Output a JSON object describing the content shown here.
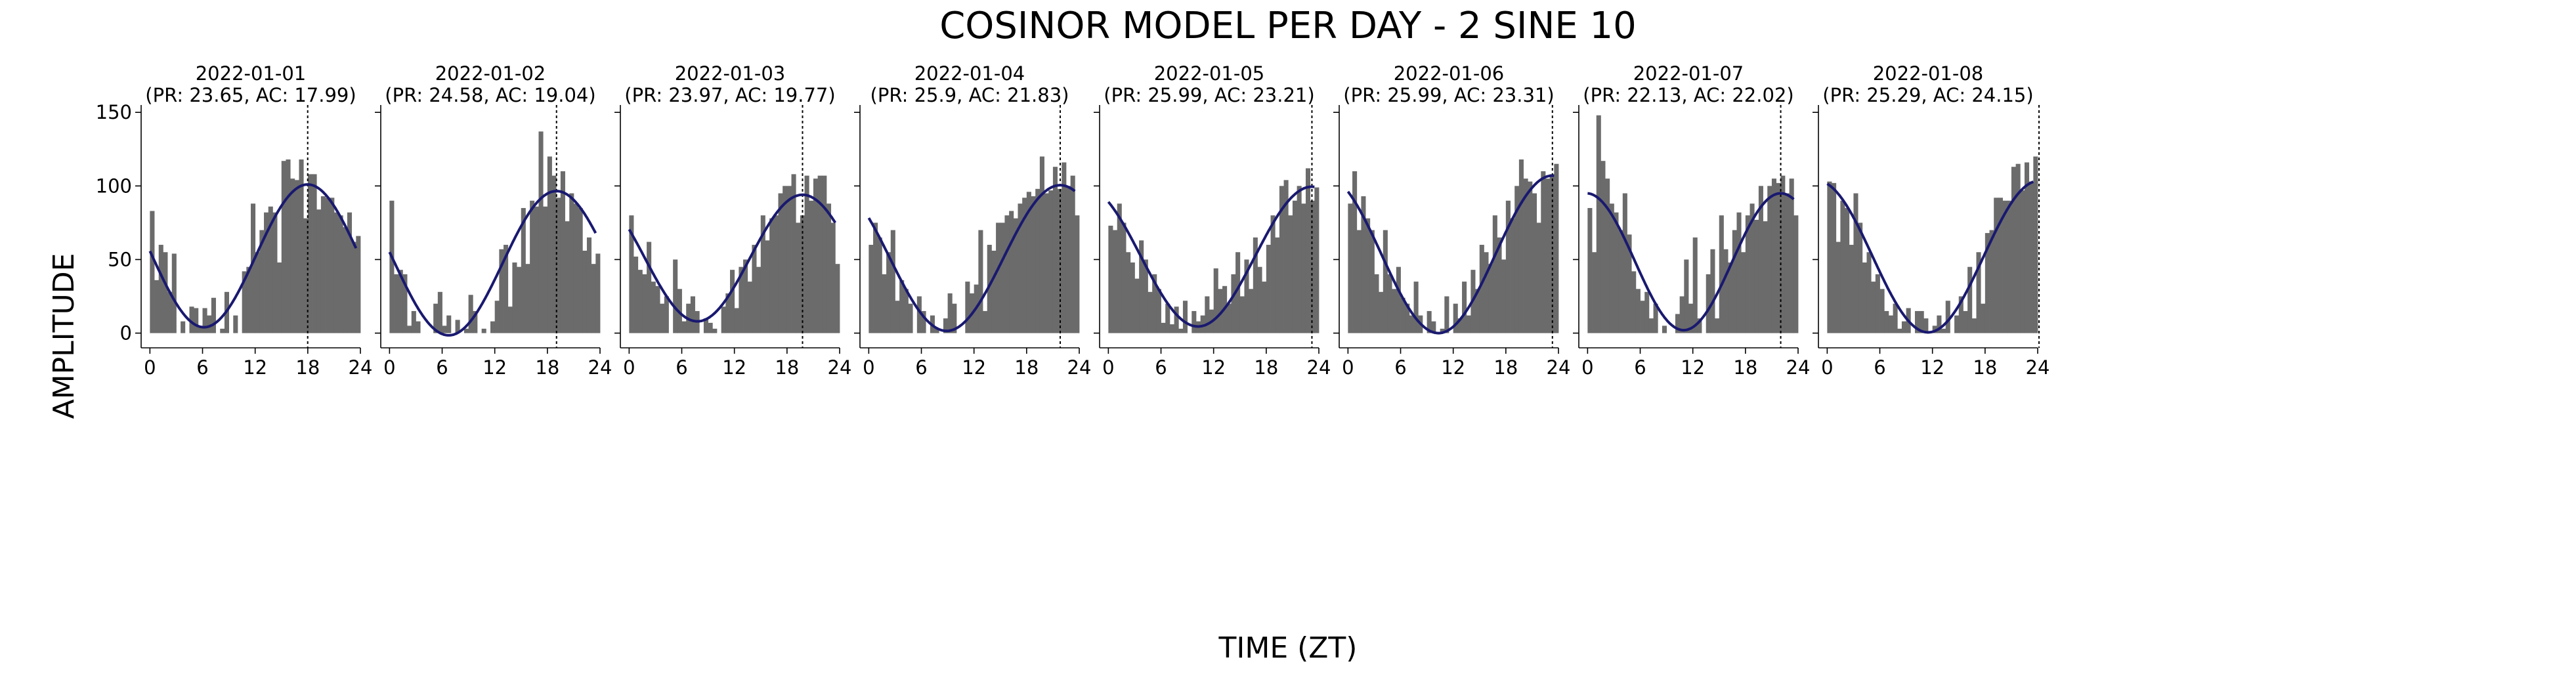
{
  "figure": {
    "title": "COSINOR MODEL PER DAY - 2 SINE 10",
    "xlabel": "TIME (ZT)",
    "ylabel": "AMPLITUDE"
  },
  "colors": {
    "bars": "#6b6b6b",
    "fit_line": "#191970",
    "marker_line": "#000000",
    "axes": "#000000"
  },
  "chart_data": [
    {
      "type": "bar",
      "title": "2022-01-01\n(PR: 23.65, AC: 17.99)",
      "xlim": [
        -1,
        24
      ],
      "ylim": [
        -10,
        155
      ],
      "xticks": [
        0,
        6,
        12,
        18,
        24
      ],
      "yticks": [
        0,
        50,
        100,
        150
      ],
      "x": [
        0,
        0.5,
        1,
        1.5,
        2,
        2.5,
        3,
        3.5,
        4,
        4.5,
        5,
        5.5,
        6,
        6.5,
        7,
        7.5,
        8,
        8.5,
        9,
        9.5,
        10,
        10.5,
        11,
        11.5,
        12,
        12.5,
        13,
        13.5,
        14,
        14.5,
        15,
        15.5,
        16,
        16.5,
        17,
        17.5,
        18,
        18.5,
        19,
        19.5,
        20,
        20.5,
        21,
        21.5,
        22,
        22.5,
        23,
        23.5
      ],
      "values": [
        83,
        36,
        60,
        55,
        28,
        54,
        0,
        8,
        0,
        18,
        17,
        5,
        17,
        12,
        24,
        0,
        3,
        28,
        0,
        12,
        0,
        42,
        45,
        88,
        55,
        70,
        82,
        86,
        82,
        48,
        117,
        118,
        105,
        104,
        118,
        78,
        108,
        108,
        84,
        93,
        92,
        92,
        82,
        80,
        72,
        82,
        62,
        66
      ],
      "fit": {
        "mesor": 52.5,
        "amplitude": 48.5,
        "acrophase": 17.99,
        "period": 23.65
      },
      "marker_x": 17.99,
      "grid": false
    },
    {
      "type": "bar",
      "title": "2022-01-02\n(PR: 24.58, AC: 19.04)",
      "xlim": [
        -1,
        24
      ],
      "ylim": [
        -10,
        155
      ],
      "xticks": [
        0,
        6,
        12,
        18,
        24
      ],
      "yticks": [],
      "x": [
        0,
        0.5,
        1,
        1.5,
        2,
        2.5,
        3,
        3.5,
        4,
        4.5,
        5,
        5.5,
        6,
        6.5,
        7,
        7.5,
        8,
        8.5,
        9,
        9.5,
        10,
        10.5,
        11,
        11.5,
        12,
        12.5,
        13,
        13.5,
        14,
        14.5,
        15,
        15.5,
        16,
        16.5,
        17,
        17.5,
        18,
        18.5,
        19,
        19.5,
        20,
        20.5,
        21,
        21.5,
        22,
        22.5,
        23,
        23.5
      ],
      "values": [
        90,
        40,
        43,
        40,
        5,
        15,
        8,
        0,
        0,
        0,
        20,
        28,
        5,
        12,
        0,
        9,
        0,
        3,
        26,
        15,
        0,
        3,
        0,
        8,
        22,
        57,
        60,
        18,
        48,
        45,
        85,
        47,
        90,
        86,
        137,
        86,
        120,
        107,
        92,
        110,
        76,
        95,
        88,
        85,
        56,
        65,
        47,
        54
      ],
      "fit": {
        "mesor": 47.5,
        "amplitude": 49.0,
        "acrophase": 19.04,
        "period": 24.58
      },
      "marker_x": 19.04,
      "grid": false
    },
    {
      "type": "bar",
      "title": "2022-01-03\n(PR: 23.97, AC: 19.77)",
      "xlim": [
        -1,
        24
      ],
      "ylim": [
        -10,
        155
      ],
      "xticks": [
        0,
        6,
        12,
        18,
        24
      ],
      "yticks": [],
      "x": [
        0,
        0.5,
        1,
        1.5,
        2,
        2.5,
        3,
        3.5,
        4,
        4.5,
        5,
        5.5,
        6,
        6.5,
        7,
        7.5,
        8,
        8.5,
        9,
        9.5,
        10,
        10.5,
        11,
        11.5,
        12,
        12.5,
        13,
        13.5,
        14,
        14.5,
        15,
        15.5,
        16,
        16.5,
        17,
        17.5,
        18,
        18.5,
        19,
        19.5,
        20,
        20.5,
        21,
        21.5,
        22,
        22.5,
        23,
        23.5
      ],
      "values": [
        80,
        52,
        43,
        40,
        62,
        35,
        32,
        20,
        25,
        0,
        50,
        30,
        8,
        20,
        25,
        15,
        0,
        10,
        7,
        3,
        0,
        18,
        27,
        43,
        17,
        45,
        50,
        35,
        60,
        45,
        80,
        63,
        78,
        80,
        95,
        100,
        100,
        108,
        75,
        80,
        107,
        90,
        105,
        107,
        107,
        88,
        75,
        47
      ],
      "fit": {
        "mesor": 51.0,
        "amplitude": 43.0,
        "acrophase": 19.77,
        "period": 23.97
      },
      "marker_x": 19.77,
      "grid": false
    },
    {
      "type": "bar",
      "title": "2022-01-04\n(PR: 25.9, AC: 21.83)",
      "xlim": [
        -1,
        24
      ],
      "ylim": [
        -10,
        155
      ],
      "xticks": [
        0,
        6,
        12,
        18,
        24
      ],
      "yticks": [],
      "x": [
        0,
        0.5,
        1,
        1.5,
        2,
        2.5,
        3,
        3.5,
        4,
        4.5,
        5,
        5.5,
        6,
        6.5,
        7,
        7.5,
        8,
        8.5,
        9,
        9.5,
        10,
        10.5,
        11,
        11.5,
        12,
        12.5,
        13,
        13.5,
        14,
        14.5,
        15,
        15.5,
        16,
        16.5,
        17,
        17.5,
        18,
        18.5,
        19,
        19.5,
        20,
        20.5,
        21,
        21.5,
        22,
        22.5,
        23,
        23.5
      ],
      "values": [
        60,
        75,
        65,
        40,
        55,
        70,
        22,
        36,
        30,
        20,
        0,
        25,
        15,
        0,
        12,
        3,
        0,
        10,
        27,
        20,
        0,
        0,
        35,
        27,
        33,
        70,
        15,
        60,
        56,
        75,
        75,
        80,
        83,
        78,
        88,
        92,
        96,
        93,
        98,
        120,
        95,
        97,
        113,
        98,
        116,
        100,
        107,
        80
      ],
      "fit": {
        "mesor": 51.0,
        "amplitude": 49.5,
        "acrophase": 21.83,
        "period": 25.9
      },
      "marker_x": 21.83,
      "grid": false
    },
    {
      "type": "bar",
      "title": "2022-01-05\n(PR: 25.99, AC: 23.21)",
      "xlim": [
        -1,
        24
      ],
      "ylim": [
        -10,
        155
      ],
      "xticks": [
        0,
        6,
        12,
        18,
        24
      ],
      "yticks": [],
      "x": [
        0,
        0.5,
        1,
        1.5,
        2,
        2.5,
        3,
        3.5,
        4,
        4.5,
        5,
        5.5,
        6,
        6.5,
        7,
        7.5,
        8,
        8.5,
        9,
        9.5,
        10,
        10.5,
        11,
        11.5,
        12,
        12.5,
        13,
        13.5,
        14,
        14.5,
        15,
        15.5,
        16,
        16.5,
        17,
        17.5,
        18,
        18.5,
        19,
        19.5,
        20,
        20.5,
        21,
        21.5,
        22,
        22.5,
        23,
        23.5
      ],
      "values": [
        73,
        70,
        88,
        75,
        55,
        48,
        37,
        63,
        50,
        28,
        40,
        30,
        7,
        20,
        6,
        18,
        3,
        22,
        0,
        15,
        8,
        12,
        25,
        16,
        44,
        30,
        32,
        20,
        40,
        55,
        25,
        50,
        30,
        65,
        45,
        35,
        60,
        80,
        65,
        100,
        104,
        80,
        90,
        100,
        88,
        112,
        90,
        99
      ],
      "fit": {
        "mesor": 52.0,
        "amplitude": 47.5,
        "acrophase": 23.21,
        "period": 25.99
      },
      "marker_x": 23.21,
      "grid": false
    },
    {
      "type": "bar",
      "title": "2022-01-06\n(PR: 25.99, AC: 23.31)",
      "xlim": [
        -1,
        24
      ],
      "ylim": [
        -10,
        155
      ],
      "xticks": [
        0,
        6,
        12,
        18,
        24
      ],
      "yticks": [],
      "x": [
        0,
        0.5,
        1,
        1.5,
        2,
        2.5,
        3,
        3.5,
        4,
        4.5,
        5,
        5.5,
        6,
        6.5,
        7,
        7.5,
        8,
        8.5,
        9,
        9.5,
        10,
        10.5,
        11,
        11.5,
        12,
        12.5,
        13,
        13.5,
        14,
        14.5,
        15,
        15.5,
        16,
        16.5,
        17,
        17.5,
        18,
        18.5,
        19,
        19.5,
        20,
        20.5,
        21,
        21.5,
        22,
        22.5,
        23,
        23.5
      ],
      "values": [
        88,
        110,
        70,
        93,
        78,
        70,
        40,
        28,
        70,
        40,
        30,
        45,
        24,
        20,
        12,
        35,
        12,
        0,
        15,
        8,
        0,
        3,
        25,
        0,
        20,
        10,
        35,
        12,
        43,
        30,
        60,
        55,
        47,
        80,
        65,
        50,
        90,
        78,
        100,
        118,
        105,
        103,
        95,
        75,
        110,
        105,
        108,
        115
      ],
      "fit": {
        "mesor": 53.5,
        "amplitude": 53.5,
        "acrophase": 23.31,
        "period": 25.99
      },
      "marker_x": 23.31,
      "grid": false
    },
    {
      "type": "bar",
      "title": "2022-01-07\n(PR: 22.13, AC: 22.02)",
      "xlim": [
        -1,
        24
      ],
      "ylim": [
        -10,
        155
      ],
      "xticks": [
        0,
        6,
        12,
        18,
        24
      ],
      "yticks": [],
      "x": [
        0,
        0.5,
        1,
        1.5,
        2,
        2.5,
        3,
        3.5,
        4,
        4.5,
        5,
        5.5,
        6,
        6.5,
        7,
        7.5,
        8,
        8.5,
        9,
        9.5,
        10,
        10.5,
        11,
        11.5,
        12,
        12.5,
        13,
        13.5,
        14,
        14.5,
        15,
        15.5,
        16,
        16.5,
        17,
        17.5,
        18,
        18.5,
        19,
        19.5,
        20,
        20.5,
        21,
        21.5,
        22,
        22.5,
        23,
        23.5
      ],
      "values": [
        85,
        55,
        148,
        117,
        105,
        88,
        82,
        70,
        95,
        67,
        42,
        30,
        22,
        28,
        10,
        20,
        0,
        5,
        0,
        0,
        13,
        25,
        50,
        20,
        65,
        10,
        0,
        40,
        57,
        10,
        80,
        57,
        48,
        70,
        82,
        55,
        80,
        88,
        77,
        100,
        76,
        100,
        105,
        102,
        107,
        95,
        105,
        80
      ],
      "fit": {
        "mesor": 48.5,
        "amplitude": 46.5,
        "acrophase": 22.02,
        "period": 22.13
      },
      "marker_x": 22.02,
      "grid": false
    },
    {
      "type": "bar",
      "title": "2022-01-08\n(PR: 25.29, AC: 24.15)",
      "xlim": [
        -1,
        24
      ],
      "ylim": [
        -10,
        155
      ],
      "xticks": [
        0,
        6,
        12,
        18,
        24
      ],
      "yticks": [],
      "x": [
        0,
        0.5,
        1,
        1.5,
        2,
        2.5,
        3,
        3.5,
        4,
        4.5,
        5,
        5.5,
        6,
        6.5,
        7,
        7.5,
        8,
        8.5,
        9,
        9.5,
        10,
        10.5,
        11,
        11.5,
        12,
        12.5,
        13,
        13.5,
        14,
        14.5,
        15,
        15.5,
        16,
        16.5,
        17,
        17.5,
        18,
        18.5,
        19,
        19.5,
        20,
        20.5,
        21,
        21.5,
        22,
        22.5,
        23,
        23.5
      ],
      "values": [
        103,
        102,
        62,
        90,
        85,
        60,
        95,
        75,
        48,
        55,
        35,
        40,
        30,
        15,
        12,
        20,
        3,
        8,
        17,
        0,
        15,
        15,
        10,
        0,
        5,
        12,
        3,
        22,
        0,
        12,
        25,
        15,
        45,
        10,
        55,
        20,
        68,
        70,
        92,
        92,
        90,
        90,
        113,
        115,
        97,
        116,
        103,
        120
      ],
      "fit": {
        "mesor": 52.0,
        "amplitude": 51.5,
        "acrophase": 24.15,
        "period": 25.29
      },
      "marker_x": 24.15,
      "grid": false
    }
  ]
}
